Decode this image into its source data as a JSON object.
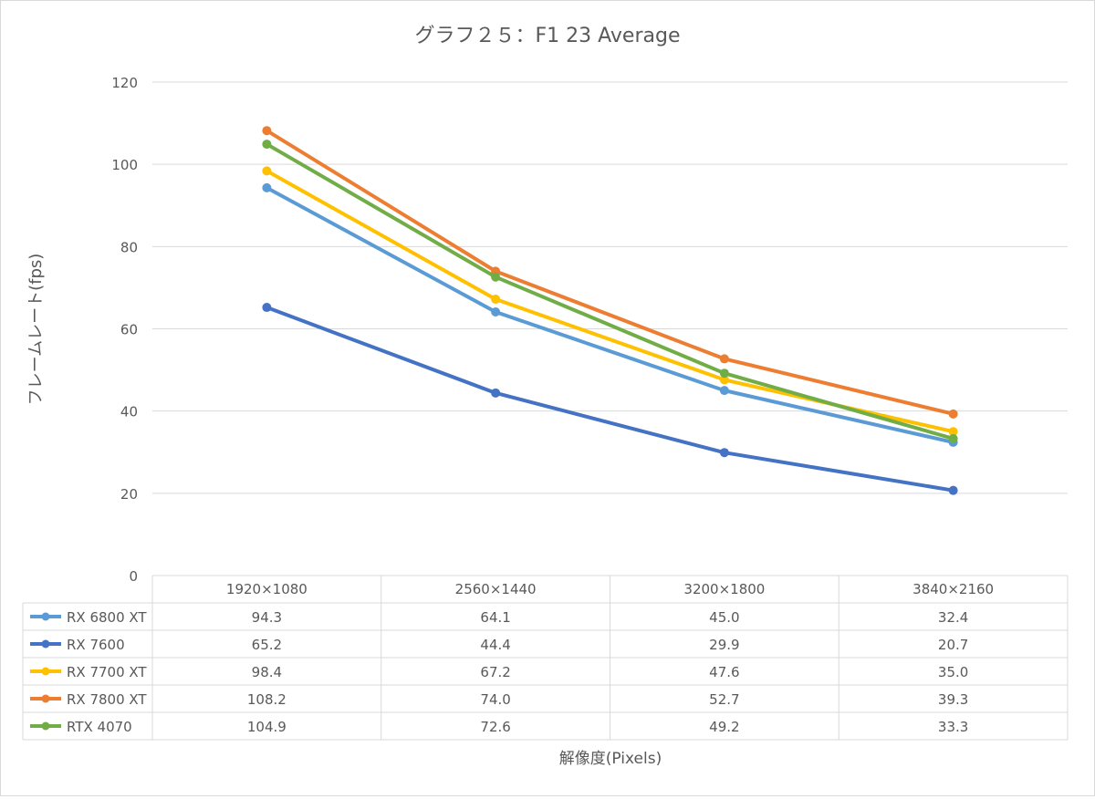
{
  "chart_data": {
    "type": "line",
    "title": "グラフ２５：F1 23 Average",
    "xlabel": "解像度(Pixels)",
    "ylabel": "フレームレート(fps)",
    "categories": [
      "1920×1080",
      "2560×1440",
      "3200×1800",
      "3840×2160"
    ],
    "ylim": [
      0,
      120
    ],
    "yticks": [
      0,
      20,
      40,
      60,
      80,
      100,
      120
    ],
    "grid": true,
    "legend": "data-table",
    "series": [
      {
        "name": "RX 6800 XT",
        "color": "#5b9bd5",
        "values": [
          94.3,
          64.1,
          45.0,
          32.4
        ],
        "labels": [
          "94.3",
          "64.1",
          "45.0",
          "32.4"
        ]
      },
      {
        "name": "RX 7600",
        "color": "#4472c4",
        "values": [
          65.2,
          44.4,
          29.9,
          20.7
        ],
        "labels": [
          "65.2",
          "44.4",
          "29.9",
          "20.7"
        ]
      },
      {
        "name": "RX 7700 XT",
        "color": "#ffc000",
        "values": [
          98.4,
          67.2,
          47.6,
          35.0
        ],
        "labels": [
          "98.4",
          "67.2",
          "47.6",
          "35.0"
        ]
      },
      {
        "name": "RX 7800 XT",
        "color": "#ed7d31",
        "values": [
          108.2,
          74.0,
          52.7,
          39.3
        ],
        "labels": [
          "108.2",
          "74.0",
          "52.7",
          "39.3"
        ]
      },
      {
        "name": "RTX 4070",
        "color": "#70ad47",
        "values": [
          104.9,
          72.6,
          49.2,
          33.3
        ],
        "labels": [
          "104.9",
          "72.6",
          "49.2",
          "33.3"
        ]
      }
    ]
  }
}
